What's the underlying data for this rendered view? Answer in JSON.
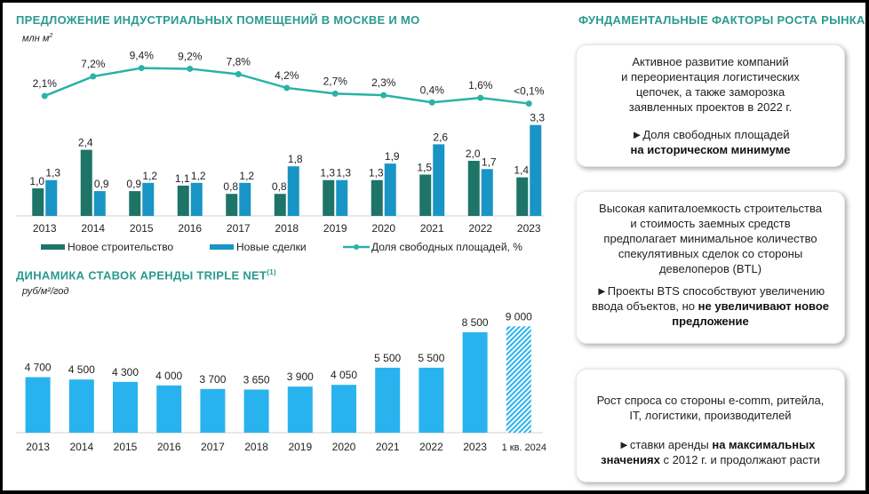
{
  "left_top": {
    "title": "ПРЕДЛОЖЕНИЕ  ИНДУСТРИАЛЬНЫХ  ПОМЕЩЕНИЙ  В МОСКВЕ И МО",
    "unit_main": "млн м",
    "unit_sup": "2"
  },
  "left_bottom": {
    "title": "ДИНАМИКА  СТАВОК АРЕНДЫ TRIPLE NET",
    "title_sup": "(1)",
    "unit": "руб/м²/год"
  },
  "right": {
    "title": "ФУНДАМЕНТАЛЬНЫЕ  ФАКТОРЫ РОСТА РЫНКА",
    "cards": [
      {
        "lines": [
          "Активное развитие компаний",
          "и переориентация логистических",
          "цепочек, а также заморозка",
          "заявленных проектов в 2022 г."
        ],
        "bullet": "►",
        "highlight_plain": "Доля свободных площадей",
        "highlight_bold": "на историческом минимуме"
      },
      {
        "lines": [
          "Высокая капиталоемкость строительства",
          "и стоимость заемных средств",
          "предполагает минимальное количество",
          "спекулятивных сделок со стороны",
          "девелоперов (BTL)"
        ],
        "bullet": "►",
        "highlight_plain": "Проекты BTS способствуют увеличению ввода объектов, но",
        "highlight_bold": "не увеличивают новое предложение"
      },
      {
        "lines": [
          "Рост спроса со стороны e-comm, ритейла,",
          "IT, логистики, производителей"
        ],
        "bullet": "►",
        "highlight_plain_1": "ставки аренды",
        "highlight_bold_1": "на максимальных",
        "highlight_bold_2": "значениях",
        "highlight_plain_2": "с 2012 г. и продолжают расти"
      }
    ]
  },
  "chart_data": [
    {
      "type": "bar",
      "title": "ПРЕДЛОЖЕНИЕ ИНДУСТРИАЛЬНЫХ ПОМЕЩЕНИЙ В МОСКВЕ И МО",
      "ylabel": "млн м²",
      "categories": [
        "2013",
        "2014",
        "2015",
        "2016",
        "2017",
        "2018",
        "2019",
        "2020",
        "2021",
        "2022",
        "2023"
      ],
      "series": [
        {
          "name": "Новое строительство",
          "kind": "bar",
          "color": "#1d7467",
          "values": [
            1.0,
            2.4,
            0.9,
            1.1,
            0.8,
            0.8,
            1.3,
            1.3,
            1.5,
            2.0,
            1.4
          ],
          "labels": [
            "1,0",
            "2,4",
            "0,9",
            "1,1",
            "0,8",
            "0,8",
            "1,3",
            "1,3",
            "1,5",
            "2,0",
            "1,4"
          ]
        },
        {
          "name": "Новые сделки",
          "kind": "bar",
          "color": "#1895c4",
          "values": [
            1.3,
            0.9,
            1.2,
            1.2,
            1.2,
            1.8,
            1.3,
            1.9,
            2.6,
            1.7,
            3.3
          ],
          "labels": [
            "1,3",
            "0,9",
            "1,2",
            "1,2",
            "1,2",
            "1,8",
            "1,3",
            "1,9",
            "2,6",
            "1,7",
            "3,3"
          ]
        },
        {
          "name": "Доля свободных площадей, %",
          "kind": "line",
          "color": "#2ab3a6",
          "values": [
            2.1,
            7.2,
            9.4,
            9.2,
            7.8,
            4.2,
            2.7,
            2.3,
            0.4,
            1.6,
            0.1
          ],
          "labels": [
            "2,1%",
            "7,2%",
            "9,4%",
            "9,2%",
            "7,8%",
            "4,2%",
            "2,7%",
            "2,3%",
            "0,4%",
            "1,6%",
            "<0,1%"
          ]
        }
      ],
      "legend": "bottom",
      "grid": false
    },
    {
      "type": "bar",
      "title": "ДИНАМИКА СТАВОК АРЕНДЫ TRIPLE NET(1)",
      "ylabel": "руб/м²/год",
      "categories": [
        "2013",
        "2014",
        "2015",
        "2016",
        "2017",
        "2018",
        "2019",
        "2020",
        "2021",
        "2022",
        "2023",
        "1 кв. 2024"
      ],
      "values": [
        4700,
        4500,
        4300,
        4000,
        3700,
        3650,
        3900,
        4050,
        5500,
        5500,
        8500,
        9000
      ],
      "labels": [
        "4 700",
        "4 500",
        "4 300",
        "4 000",
        "3 700",
        "3 650",
        "3 900",
        "4 050",
        "5 500",
        "5 500",
        "8 500",
        "9 000"
      ],
      "color": "#29b3ee",
      "hatched_last": true,
      "grid": false
    }
  ]
}
